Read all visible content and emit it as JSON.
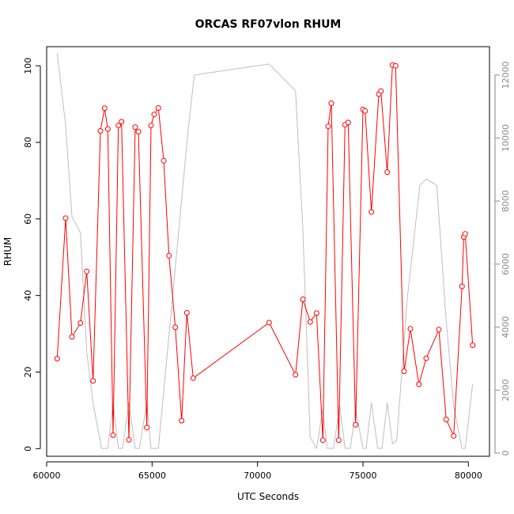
{
  "chart_data": {
    "type": "line",
    "title": "ORCAS RF07vlon RHUM",
    "xlabel": "UTC Seconds",
    "ylabel": "RHUM",
    "xlim": [
      60000,
      81000
    ],
    "ylim": [
      -2,
      105
    ],
    "y2lim": [
      -100,
      12900
    ],
    "x_ticks": [
      60000,
      65000,
      70000,
      75000,
      80000
    ],
    "y_ticks": [
      0,
      20,
      40,
      60,
      80,
      100
    ],
    "y2_ticks": [
      0,
      2000,
      4000,
      6000,
      8000,
      10000,
      12000
    ],
    "grid": false,
    "colors": {
      "rhum": "#ff0000",
      "secondary": "#bebebe",
      "axis": "#000000",
      "right_axis": "#888888"
    },
    "series": [
      {
        "axis": "left",
        "marker": "open-circle",
        "x": [
          60500,
          60900,
          61200,
          61600,
          61900,
          62200,
          62550,
          62750,
          62900,
          63150,
          63400,
          63550,
          63900,
          64200,
          64350,
          64750,
          64950,
          65100,
          65300,
          65550,
          65800,
          66100,
          66400,
          66650,
          66950,
          70550,
          71800,
          72150,
          72500,
          72800,
          73100,
          73350,
          73500,
          73850,
          74150,
          74300,
          74650,
          75000,
          75100,
          75400,
          75750,
          75850,
          76150,
          76400,
          76550,
          76950,
          77250,
          77650,
          78000,
          78600,
          78950,
          79300,
          79700,
          79780,
          79850,
          80200
        ],
        "y": [
          23.5,
          60.2,
          29.2,
          32.8,
          46.3,
          17.7,
          83.0,
          88.9,
          83.5,
          3.5,
          84.4,
          85.4,
          2.3,
          84.0,
          82.8,
          5.5,
          84.4,
          87.3,
          89.0,
          75.2,
          50.4,
          31.7,
          7.3,
          35.5,
          18.4,
          32.9,
          19.3,
          39.0,
          33.1,
          35.4,
          2.2,
          84.2,
          90.2,
          2.2,
          84.6,
          85.2,
          6.2,
          88.6,
          88.2,
          61.8,
          92.6,
          93.4,
          72.2,
          100.2,
          100.0,
          20.2,
          31.3,
          16.8,
          23.6,
          31.1,
          7.6,
          3.3,
          42.4,
          55.3,
          56.1,
          27.0
        ]
      },
      {
        "axis": "right",
        "marker": "none",
        "x": [
          60500,
          60900,
          61200,
          61600,
          61900,
          62200,
          62600,
          62900,
          63150,
          63400,
          63600,
          63900,
          64200,
          64400,
          64750,
          64950,
          65100,
          65300,
          66700,
          67000,
          70550,
          71800,
          72150,
          72500,
          72800,
          73100,
          73300,
          73600,
          73900,
          74150,
          74400,
          74650,
          75000,
          75150,
          75400,
          75700,
          75900,
          76150,
          76400,
          76600,
          77100,
          77700,
          78000,
          78500,
          78950,
          79300,
          79700,
          79850,
          80200
        ],
        "y": [
          12700,
          10400,
          7500,
          7000,
          3200,
          1600,
          150,
          150,
          1600,
          150,
          150,
          1600,
          150,
          150,
          1600,
          150,
          150,
          150,
          10200,
          12000,
          12350,
          11500,
          7100,
          500,
          150,
          1400,
          150,
          150,
          1500,
          150,
          150,
          1400,
          150,
          150,
          1600,
          150,
          150,
          1600,
          300,
          400,
          4900,
          8500,
          8700,
          8500,
          4200,
          1500,
          150,
          150,
          2200
        ]
      }
    ]
  }
}
